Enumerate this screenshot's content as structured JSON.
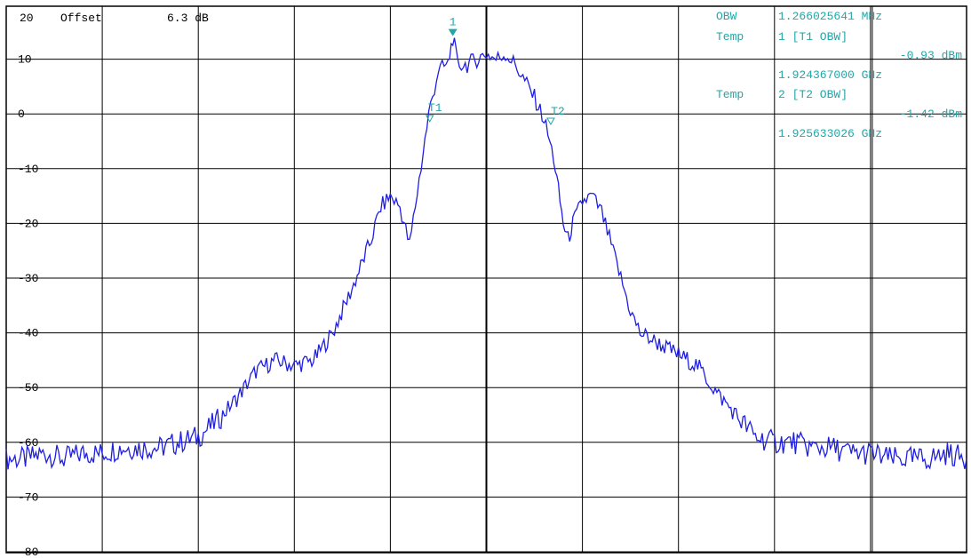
{
  "header": {
    "ref_level": "20",
    "offset_label": "Offset",
    "offset_value": "6.3 dB"
  },
  "colors": {
    "trace": "#1f1fe0",
    "annotation": "#22a7a7",
    "grid": "#000000",
    "background": "#ffffff"
  },
  "readout": {
    "obw_label": "OBW",
    "obw_value": "1.266025641 MHz",
    "t1_label": "Temp",
    "t1_desc": "1 [T1 OBW]",
    "t1_level": "-0.93 dBm",
    "t1_freq": "1.924367000 GHz",
    "t2_label": "Temp",
    "t2_desc": "2 [T2 OBW]",
    "t2_level": "-1.42 dBm",
    "t2_freq": "1.925633026 GHz"
  },
  "markers": {
    "m1_label": "1",
    "t1_label": "T1",
    "t2_label": "T2"
  },
  "chart_data": {
    "type": "line",
    "title": "",
    "xlabel": "",
    "ylabel": "",
    "ylim": [
      -85,
      20
    ],
    "xlim": [
      0,
      10
    ],
    "yticks": [
      "10",
      "0",
      "-10",
      "-20",
      "-30",
      "-40",
      "-50",
      "-60",
      "-70",
      "-80"
    ],
    "grid": true,
    "series": [
      {
        "x": [
          0,
          0.2,
          0.4,
          0.6,
          0.8,
          1.0,
          1.2,
          1.4,
          1.6,
          1.8,
          2.0,
          2.2,
          2.4,
          2.6,
          2.8,
          3.0,
          3.2,
          3.4,
          3.6,
          3.8,
          3.9,
          4.0,
          4.1,
          4.2,
          4.3,
          4.4,
          4.5,
          4.6,
          4.65,
          4.7,
          4.8,
          4.9,
          5.0,
          5.1,
          5.2,
          5.3,
          5.4,
          5.5,
          5.6,
          5.7,
          5.75,
          5.8,
          5.85,
          5.9,
          6.0,
          6.1,
          6.2,
          6.3,
          6.4,
          6.5,
          6.6,
          6.8,
          7.0,
          7.2,
          7.4,
          7.6,
          7.8,
          8.0,
          8.2,
          8.4,
          8.6,
          8.8,
          9.0,
          9.2,
          9.4,
          9.6,
          9.8,
          10.0
        ],
        "y": [
          -63,
          -63,
          -62,
          -63,
          -62,
          -62,
          -61,
          -61,
          -61,
          -60,
          -59,
          -56,
          -52,
          -47,
          -45,
          -46,
          -45,
          -40,
          -32,
          -23,
          -17,
          -15,
          -17,
          -24,
          -12,
          0,
          8,
          9,
          14,
          9,
          9,
          10,
          11,
          10,
          11,
          9,
          6,
          3,
          -1,
          -8,
          -14,
          -20,
          -23,
          -20,
          -16,
          -15,
          -18,
          -24,
          -30,
          -36,
          -40,
          -42,
          -44,
          -46,
          -51,
          -55,
          -59,
          -60,
          -60,
          -61,
          -61,
          -62,
          -62,
          -63,
          -63,
          -63,
          -62,
          -63
        ]
      }
    ],
    "marker_points": [
      {
        "name": "1",
        "x": 4.65,
        "y": 14.7
      },
      {
        "name": "T1",
        "x": 4.41,
        "y": -0.93
      },
      {
        "name": "T2",
        "x": 5.67,
        "y": -1.42
      }
    ]
  }
}
